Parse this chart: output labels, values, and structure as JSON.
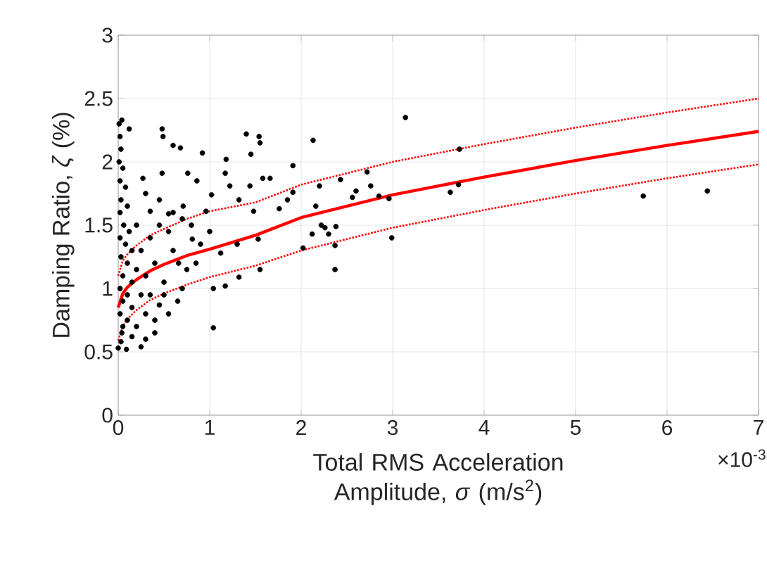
{
  "chart_data": {
    "type": "scatter",
    "xlabel": "Total RMS Acceleration Amplitude, *σ* (m/s$^{2}$)",
    "ylabel": "Damping Ratio, *ζ* (%)",
    "annotations": [
      "×10$^{-3}$"
    ],
    "xlim": [
      0,
      7
    ],
    "ylim": [
      0,
      3
    ],
    "xticks": [
      0,
      1,
      2,
      3,
      4,
      5,
      6,
      7
    ],
    "yticks": [
      0,
      0.5,
      1,
      1.5,
      2,
      2.5,
      3
    ],
    "grid": true,
    "series": [
      {
        "color": "#000000",
        "marker": "circle",
        "x": [
          2.13,
          3.14,
          3.73,
          2.2,
          2.43,
          2.72,
          2.76,
          2.6,
          2.56,
          2.85,
          2.96,
          2.16,
          3.63,
          3.72,
          2.12,
          2.22,
          2.26,
          2.3,
          2.38,
          2.37,
          2.37,
          2.99,
          5.74,
          6.44,
          0.04,
          0.12,
          0.48,
          0.49,
          0.6,
          0.68,
          1.4,
          1.54,
          1.55,
          0.92,
          1.18,
          1.45,
          1.91,
          0.48,
          0.27,
          0.76,
          0.86,
          1.17,
          1.58,
          1.66,
          1.22,
          1.44,
          1.91,
          1.02,
          1.76,
          1.85,
          1.48,
          1.32,
          0.55,
          0.35,
          0.71,
          0.96,
          1.53,
          1.3,
          1.55,
          1.32,
          1.17,
          1.04,
          1.04,
          2.02,
          1.12,
          0.81,
          0.66,
          0.45,
          0.4,
          0.25,
          0.09,
          0.0,
          0.04,
          0.01,
          0.02,
          0.03,
          0.01,
          0.05,
          0.02,
          0.08,
          0.03,
          0.1,
          0.02,
          0.06,
          0.12,
          0.02,
          0.08,
          0.15,
          0.03,
          0.1,
          0.2,
          0.05,
          0.15,
          0.02,
          0.1,
          0.25,
          0.05,
          0.15,
          0.02,
          0.1,
          0.2,
          0.05,
          0.15,
          0.3,
          0.03,
          0.3,
          0.4,
          0.5,
          0.6,
          0.7,
          0.35,
          0.45,
          0.55,
          0.8,
          0.9,
          0.25,
          0.65,
          0.3,
          0.5,
          0.75,
          0.4,
          0.6,
          0.85,
          1.0,
          0.2,
          0.45,
          0.3,
          0.7,
          0.55,
          0.35
        ],
        "values": [
          2.17,
          2.35,
          2.1,
          1.81,
          1.86,
          1.92,
          1.81,
          1.77,
          1.72,
          1.73,
          1.71,
          1.65,
          1.76,
          1.82,
          1.43,
          1.5,
          1.48,
          1.43,
          1.49,
          1.34,
          1.15,
          1.4,
          1.73,
          1.77,
          2.33,
          2.26,
          2.26,
          2.2,
          2.13,
          2.11,
          2.22,
          2.2,
          2.15,
          2.07,
          2.02,
          2.06,
          1.97,
          1.91,
          1.87,
          1.91,
          1.85,
          1.91,
          1.87,
          1.87,
          1.81,
          1.81,
          1.76,
          1.74,
          1.63,
          1.7,
          1.61,
          1.7,
          1.59,
          1.61,
          1.65,
          1.61,
          1.39,
          1.35,
          1.15,
          1.09,
          1.02,
          1.0,
          0.69,
          1.32,
          1.28,
          1.39,
          1.2,
          0.87,
          0.65,
          0.54,
          0.52,
          0.53,
          0.65,
          2.3,
          2.2,
          2.1,
          2.0,
          1.95,
          1.85,
          1.8,
          1.7,
          1.65,
          1.6,
          1.5,
          1.45,
          1.4,
          1.35,
          1.3,
          1.25,
          1.2,
          1.15,
          1.1,
          1.05,
          1.0,
          0.95,
          0.95,
          0.9,
          0.85,
          0.8,
          0.75,
          0.7,
          0.7,
          0.62,
          0.6,
          0.58,
          1.1,
          1.2,
          1.05,
          1.3,
          1.0,
          1.4,
          1.5,
          1.45,
          1.5,
          1.35,
          1.3,
          0.9,
          0.8,
          0.95,
          1.15,
          0.75,
          1.6,
          1.2,
          1.45,
          1.5,
          1.7,
          1.75,
          1.55,
          0.8,
          0.95
        ]
      },
      {
        "type": "line",
        "color": "#ff0000",
        "marker": "none",
        "line_style": "solid",
        "x": [
          0,
          0.05,
          0.1,
          0.2,
          0.35,
          0.5,
          0.75,
          1,
          1.5,
          2,
          3,
          4,
          5,
          6,
          7
        ],
        "values": [
          0.85,
          0.96,
          1.01,
          1.07,
          1.14,
          1.19,
          1.26,
          1.31,
          1.42,
          1.56,
          1.74,
          1.88,
          2.01,
          2.13,
          2.24
        ]
      },
      {
        "type": "line",
        "color": "#ff0000",
        "marker": "none",
        "line_style": "dotted",
        "x": [
          0,
          0.05,
          0.1,
          0.2,
          0.35,
          0.5,
          0.75,
          1,
          1.5,
          2,
          3,
          4,
          5,
          6,
          7
        ],
        "values": [
          0.59,
          0.7,
          0.76,
          0.83,
          0.91,
          0.96,
          1.03,
          1.09,
          1.18,
          1.3,
          1.48,
          1.62,
          1.75,
          1.87,
          1.98
        ]
      },
      {
        "type": "line",
        "color": "#ff0000",
        "marker": "none",
        "line_style": "dotted",
        "x": [
          0,
          0.05,
          0.1,
          0.2,
          0.35,
          0.5,
          0.75,
          1,
          1.5,
          2,
          3,
          4,
          5,
          6,
          7
        ],
        "values": [
          1.1,
          1.22,
          1.27,
          1.34,
          1.42,
          1.47,
          1.55,
          1.61,
          1.68,
          1.82,
          2.0,
          2.14,
          2.27,
          2.39,
          2.5
        ]
      }
    ]
  }
}
